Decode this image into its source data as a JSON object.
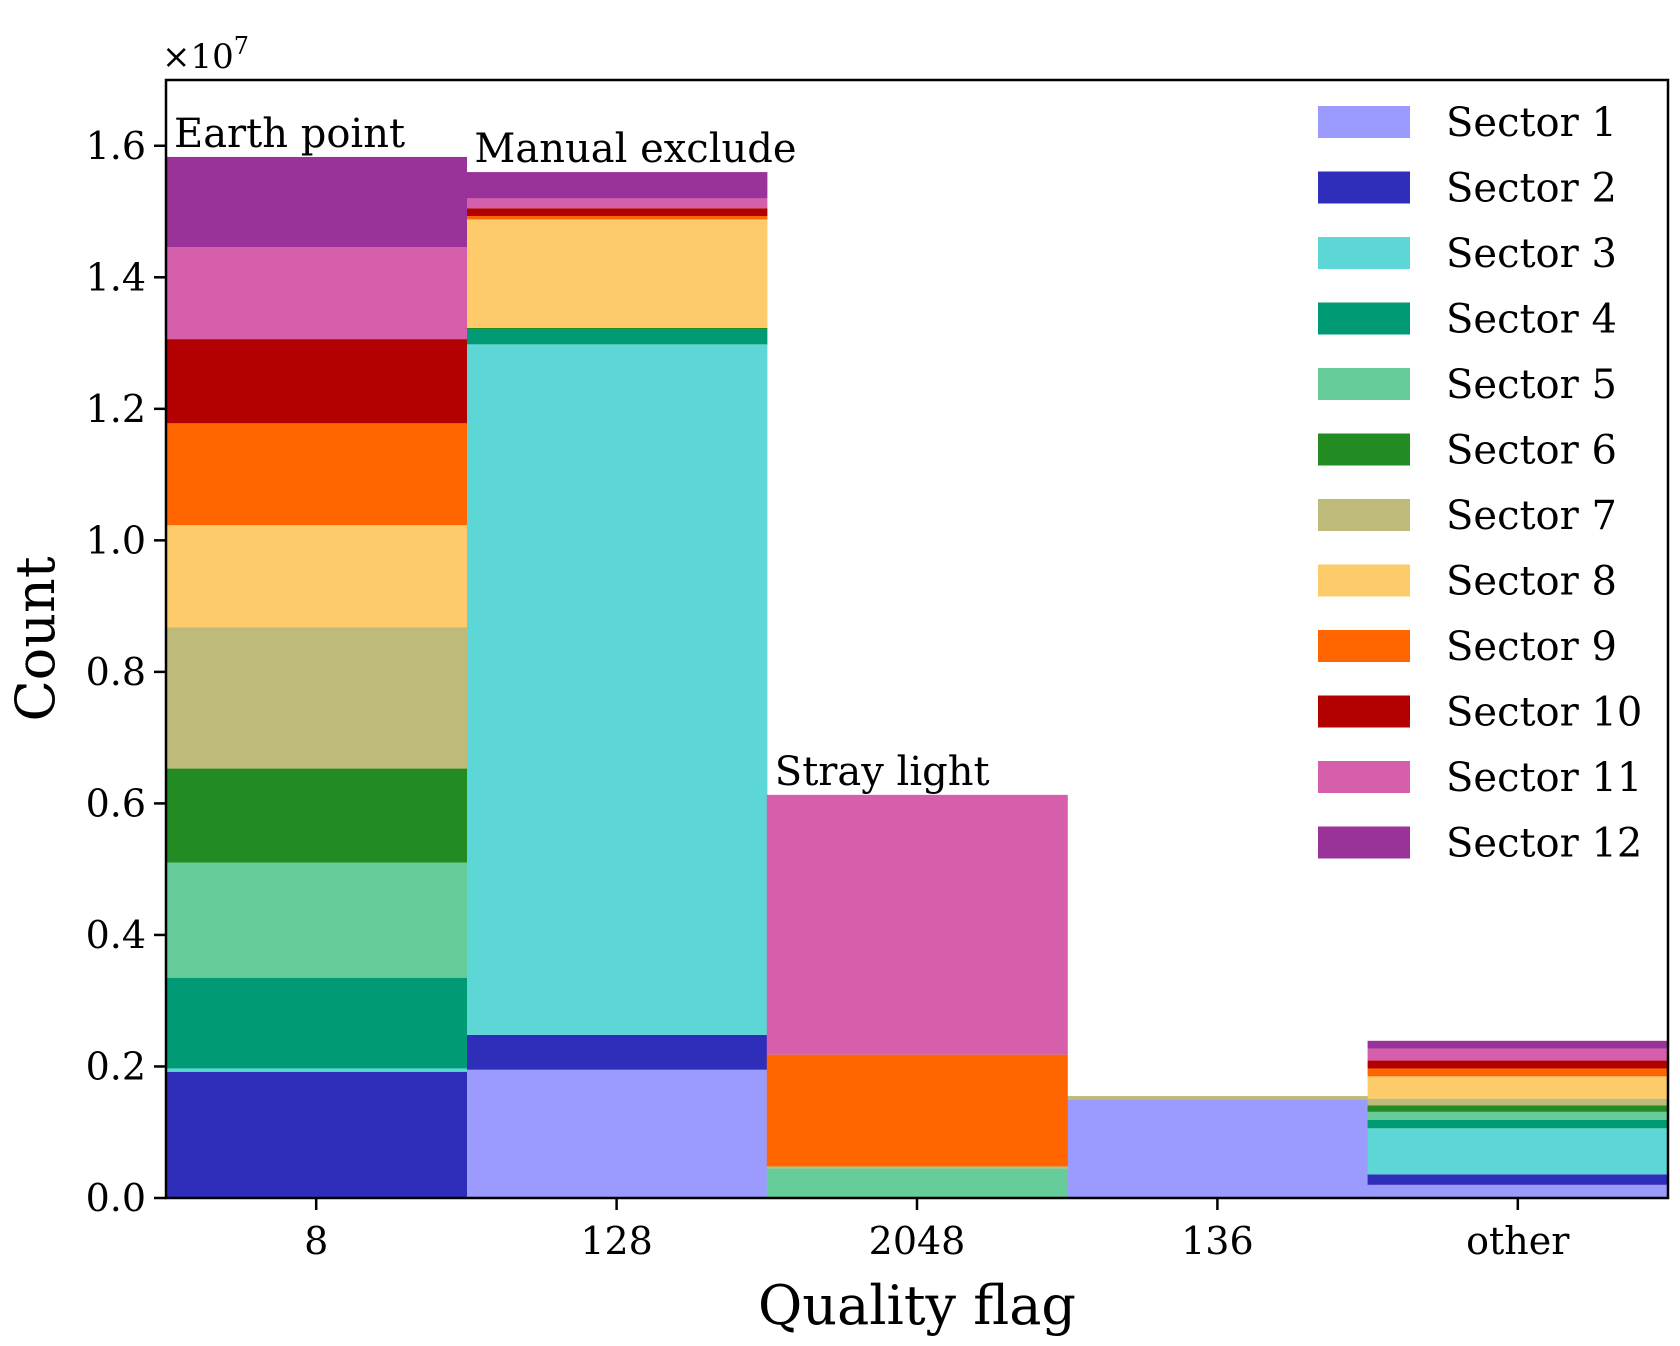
{
  "chart_data": {
    "type": "bar",
    "stacked": true,
    "xlabel": "Quality flag",
    "ylabel": "Count",
    "y_exponent_label": "×10",
    "y_exponent_power": "7",
    "ylim": [
      0,
      1.7
    ],
    "yticks": [
      "0.0",
      "0.2",
      "0.4",
      "0.6",
      "0.8",
      "1.0",
      "1.2",
      "1.4",
      "1.6"
    ],
    "categories": [
      "8",
      "128",
      "2048",
      "136",
      "other"
    ],
    "annotations": [
      {
        "category": "8",
        "text": "Earth point"
      },
      {
        "category": "128",
        "text": "Manual exclude"
      },
      {
        "category": "2048",
        "text": "Stray light"
      }
    ],
    "legend_position": "upper-right",
    "series": [
      {
        "name": "Sector 1",
        "color": "#9b9bfe",
        "values": [
          0.0,
          0.195,
          0.0,
          0.15,
          0.02
        ]
      },
      {
        "name": "Sector 2",
        "color": "#2e2ebb",
        "values": [
          0.192,
          0.053,
          0.0,
          0.0,
          0.016
        ]
      },
      {
        "name": "Sector 3",
        "color": "#5dd6d6",
        "values": [
          0.005,
          1.05,
          0.0,
          0.0,
          0.07
        ]
      },
      {
        "name": "Sector 4",
        "color": "#009a75",
        "values": [
          0.138,
          0.022,
          0.0,
          0.0,
          0.013
        ]
      },
      {
        "name": "Sector 5",
        "color": "#66cc99",
        "values": [
          0.175,
          0.0,
          0.045,
          0.0,
          0.012
        ]
      },
      {
        "name": "Sector 6",
        "color": "#228b22",
        "values": [
          0.143,
          0.003,
          0.0,
          0.0,
          0.01
        ]
      },
      {
        "name": "Sector 7",
        "color": "#bdba7a",
        "values": [
          0.215,
          0.0,
          0.003,
          0.005,
          0.01
        ]
      },
      {
        "name": "Sector 8",
        "color": "#fdcb6a",
        "values": [
          0.155,
          0.165,
          0.0,
          0.0,
          0.034
        ]
      },
      {
        "name": "Sector 9",
        "color": "#ff6600",
        "values": [
          0.155,
          0.005,
          0.17,
          0.0,
          0.012
        ]
      },
      {
        "name": "Sector 10",
        "color": "#b30000",
        "values": [
          0.128,
          0.012,
          0.0,
          0.0,
          0.012
        ]
      },
      {
        "name": "Sector 11",
        "color": "#d65fab",
        "values": [
          0.14,
          0.015,
          0.395,
          0.0,
          0.018
        ]
      },
      {
        "name": "Sector 12",
        "color": "#993399",
        "values": [
          0.137,
          0.04,
          0.0,
          0.0,
          0.012
        ]
      }
    ]
  }
}
